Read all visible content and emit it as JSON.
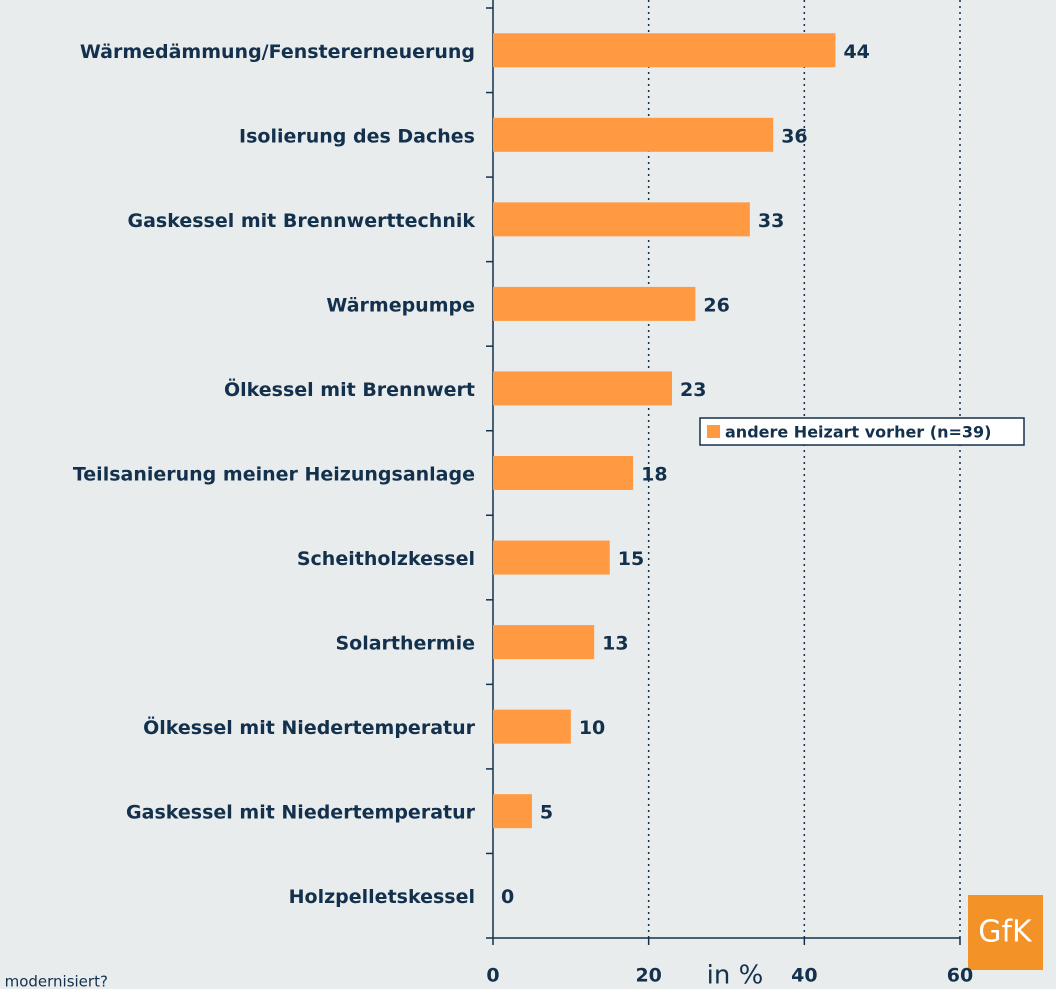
{
  "chart_data": {
    "type": "hbar",
    "categories": [
      "Wärmedämmung/Fenstererneuerung",
      "Isolierung des Daches",
      "Gaskessel mit Brennwerttechnik",
      "Wärmepumpe",
      "Ölkessel mit Brennwert",
      "Teilsanierung meiner Heizungsanlage",
      "Scheitholzkessel",
      "Solarthermie",
      "Ölkessel mit Niedertemperatur",
      "Gaskessel mit Niedertemperatur",
      "Holzpelletskessel"
    ],
    "series": [
      {
        "name": "andere Heizart vorher (n=39)",
        "color": "#ff9a42",
        "values": [
          44,
          36,
          33,
          26,
          23,
          18,
          15,
          13,
          10,
          5,
          0
        ]
      }
    ],
    "xlim": [
      0,
      60
    ],
    "xticks": [
      0,
      20,
      40,
      60
    ],
    "grid": true,
    "x_label": "in %",
    "footnote": "s modernisiert?",
    "logo": "GfK",
    "legend": "right"
  }
}
